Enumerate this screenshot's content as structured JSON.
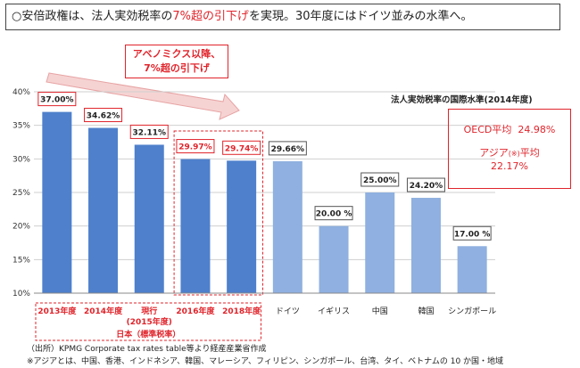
{
  "headline": {
    "prefix": "○安倍政権は、法人実効税率の",
    "highlight": "7%超の引下げ",
    "suffix": "を実現。30年度にはドイツ並みの水準へ。"
  },
  "callout": {
    "line1": "アベノミクス以降、",
    "line2": "7%超の引下げ"
  },
  "averages": {
    "oecd_label": "OECD平均",
    "oecd_value": "24.98%",
    "asia_label": "アジア",
    "asia_note": "(※)",
    "asia_suffix": "平均",
    "asia_value": "22.17%"
  },
  "japan_bracket_label": "日本（標準税率）",
  "footnotes": {
    "source": "（出所）KPMG Corporate tax rates table等より経産産業省作成",
    "note": "※アジアとは、中国、香港、インドネシア、韓国、マレーシア、フィリピン、シンガポール、台湾、タイ、ベトナムの 10 か国・地域"
  },
  "colors": {
    "japan_bar": "#4e80cc",
    "other_bar": "#8fb0e0",
    "accent_red": "#e0242b",
    "grid": "#cfcfcf"
  },
  "chart_data": {
    "type": "bar",
    "title": "法人実効税率の国際水準(2014年度)",
    "ylim": [
      10,
      40
    ],
    "yticks": [
      "10%",
      "15%",
      "20%",
      "25%",
      "30%",
      "35%",
      "40%"
    ],
    "ytick_values": [
      10,
      15,
      20,
      25,
      30,
      35,
      40
    ],
    "grid": true,
    "categories": [
      "2013年度",
      "2014年度",
      "現行",
      "2016年度",
      "2018年度",
      "ドイツ",
      "イギリス",
      "中国",
      "韓国",
      "シンガポール"
    ],
    "category_sublabels": [
      "",
      "",
      "(2015年度)",
      "",
      "",
      "",
      "",
      "",
      "",
      ""
    ],
    "values": [
      37.0,
      34.62,
      32.11,
      29.97,
      29.74,
      29.66,
      20.0,
      25.0,
      24.2,
      17.0
    ],
    "value_labels": [
      "37.00%",
      "34.62%",
      "32.11%",
      "29.97%",
      "29.74%",
      "29.66%",
      "20.00 %",
      "25.00%",
      "24.20%",
      "17.00 %"
    ],
    "japan_indices": [
      0,
      1,
      2,
      3,
      4
    ],
    "red_label_indices": [
      3,
      4
    ]
  }
}
